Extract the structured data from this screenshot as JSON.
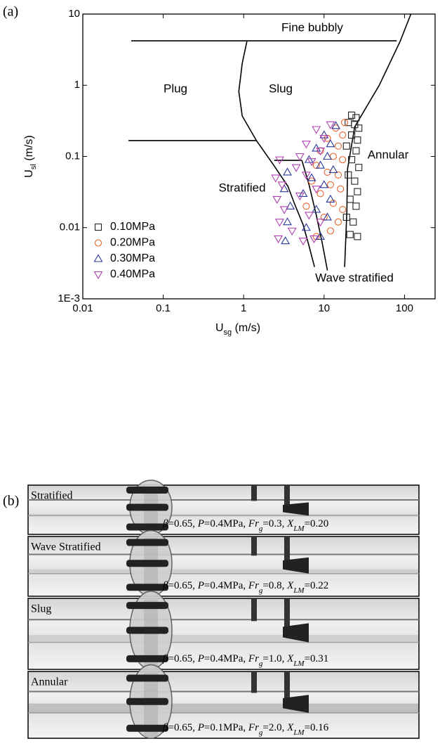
{
  "panel_labels": [
    "(a)",
    "(b)"
  ],
  "chart_data": {
    "type": "scatter",
    "x_label": [
      "U",
      "sg",
      " (m/s)"
    ],
    "y_label": [
      "U",
      "sl",
      " (m/s)"
    ],
    "log_x": true,
    "log_y": true,
    "xlim": [
      0.01,
      240
    ],
    "ylim": [
      0.001,
      10
    ],
    "xticks": [
      0.01,
      0.1,
      1,
      10,
      100
    ],
    "yticks": [
      {
        "value": 0.001,
        "label": "1E-3"
      },
      0.01,
      0.1,
      1,
      10
    ],
    "legend": "lower left",
    "annotations": [
      "Fine bubbly",
      "Plug",
      "Slug",
      "Annular",
      "Stratified",
      "Wave stratified"
    ],
    "boundaries": [
      {
        "x": [
          0.04,
          80
        ],
        "y": [
          4.2,
          4.2
        ]
      },
      {
        "x": [
          1.1,
          0.96,
          0.87,
          0.96,
          1.44,
          2.37,
          3.55,
          4.3,
          5.5,
          6.5,
          7.6
        ],
        "y": [
          4.2,
          2.04,
          0.82,
          0.37,
          0.167,
          0.075,
          0.038,
          0.0215,
          0.0109,
          0.0055,
          0.0028
        ]
      },
      {
        "x": [
          0.037,
          1.44
        ],
        "y": [
          0.167,
          0.167
        ]
      },
      {
        "x": [
          2.4,
          5.3
        ],
        "y": [
          0.088,
          0.088
        ]
      },
      {
        "x": [
          120,
          88.7,
          48.5,
          24,
          19.6,
          19.2,
          18
        ],
        "y": [
          10,
          4.2,
          1.0,
          0.26,
          0.067,
          0.017,
          0.0028
        ]
      },
      {
        "x": [
          5.3,
          6.5,
          8,
          9.5,
          11
        ],
        "y": [
          0.088,
          0.04,
          0.015,
          0.006,
          0.0025
        ]
      }
    ],
    "series": [
      {
        "name": "0.10MPa",
        "marker": "square",
        "color": "#222222",
        "x": [
          22,
          25,
          20,
          24,
          27,
          22,
          26,
          19,
          25,
          22,
          27,
          20,
          24,
          26,
          21,
          25,
          19,
          23,
          21,
          26
        ],
        "values": [
          0.38,
          0.35,
          0.3,
          0.28,
          0.25,
          0.2,
          0.17,
          0.14,
          0.12,
          0.09,
          0.07,
          0.055,
          0.045,
          0.032,
          0.025,
          0.02,
          0.014,
          0.012,
          0.008,
          0.0075
        ]
      },
      {
        "name": "0.20MPa",
        "marker": "circle",
        "color": "#e8632a",
        "x": [
          18,
          14,
          17,
          11,
          15,
          9,
          13,
          17,
          8,
          11,
          15,
          7,
          12,
          16,
          9,
          13,
          6,
          17,
          10,
          15,
          8,
          12
        ],
        "values": [
          0.3,
          0.25,
          0.2,
          0.18,
          0.14,
          0.12,
          0.1,
          0.09,
          0.075,
          0.06,
          0.055,
          0.045,
          0.04,
          0.035,
          0.03,
          0.022,
          0.02,
          0.018,
          0.014,
          0.012,
          0.0075,
          0.009
        ]
      },
      {
        "name": "0.30MPa",
        "marker": "triangle-up",
        "color": "#2a3a9a",
        "x": [
          14,
          10,
          12,
          8,
          11,
          6.5,
          9,
          13,
          3.5,
          7,
          10,
          3.2,
          5.5,
          12,
          3.8,
          8,
          3.5,
          11,
          6,
          3.3,
          9
        ],
        "values": [
          0.27,
          0.2,
          0.15,
          0.13,
          0.1,
          0.09,
          0.075,
          0.065,
          0.06,
          0.05,
          0.04,
          0.035,
          0.03,
          0.025,
          0.02,
          0.018,
          0.012,
          0.014,
          0.01,
          0.0065,
          0.0075
        ]
      },
      {
        "name": "0.40MPa",
        "marker": "triangle-down",
        "color": "#b040b0",
        "x": [
          12,
          8,
          10,
          6,
          9,
          5,
          7,
          2.8,
          4.5,
          2.5,
          6,
          3,
          8,
          2.6,
          5,
          3.2,
          6.5,
          2.8,
          9,
          4,
          2.7,
          5.5,
          7.5
        ],
        "values": [
          0.28,
          0.24,
          0.18,
          0.15,
          0.12,
          0.1,
          0.085,
          0.09,
          0.07,
          0.05,
          0.055,
          0.04,
          0.035,
          0.025,
          0.028,
          0.018,
          0.015,
          0.012,
          0.012,
          0.009,
          0.007,
          0.0065,
          0.007
        ]
      }
    ]
  },
  "photos": [
    {
      "label": "Stratified",
      "caption": [
        {
          "t": "β",
          "s": "italic"
        },
        {
          "t": "=0.65, ",
          "s": "plain"
        },
        {
          "t": "P",
          "s": "italic"
        },
        {
          "t": "=0.4MPa, ",
          "s": "plain"
        },
        {
          "t": "Fr",
          "s": "italic"
        },
        {
          "t": "g",
          "s": "italic-sub"
        },
        {
          "t": "=0.3, ",
          "s": "plain"
        },
        {
          "t": "X",
          "s": "italic"
        },
        {
          "t": "LM",
          "s": "italic-sub"
        },
        {
          "t": "=0.20",
          "s": "plain"
        }
      ]
    },
    {
      "label": "Wave Stratified",
      "caption": [
        {
          "t": "β",
          "s": "italic"
        },
        {
          "t": "=0.65, ",
          "s": "plain"
        },
        {
          "t": "P",
          "s": "italic"
        },
        {
          "t": "=0.4MPa, ",
          "s": "plain"
        },
        {
          "t": "Fr",
          "s": "italic"
        },
        {
          "t": "g",
          "s": "italic-sub"
        },
        {
          "t": "=0.8, ",
          "s": "plain"
        },
        {
          "t": "X",
          "s": "italic"
        },
        {
          "t": "LM",
          "s": "italic-sub"
        },
        {
          "t": "=0.22",
          "s": "plain"
        }
      ]
    },
    {
      "label": "Slug",
      "caption": [
        {
          "t": "β",
          "s": "italic"
        },
        {
          "t": "=0.65, ",
          "s": "plain"
        },
        {
          "t": "P",
          "s": "italic"
        },
        {
          "t": "=0.4MPa, ",
          "s": "plain"
        },
        {
          "t": "Fr",
          "s": "italic"
        },
        {
          "t": "g",
          "s": "italic-sub"
        },
        {
          "t": "=1.0, ",
          "s": "plain"
        },
        {
          "t": "X",
          "s": "italic"
        },
        {
          "t": "LM",
          "s": "italic-sub"
        },
        {
          "t": "=0.31",
          "s": "plain"
        }
      ]
    },
    {
      "label": "Annular",
      "caption": [
        {
          "t": "β",
          "s": "italic"
        },
        {
          "t": "=0.65, ",
          "s": "plain"
        },
        {
          "t": "P",
          "s": "italic"
        },
        {
          "t": "=0.1MPa, ",
          "s": "plain"
        },
        {
          "t": "Fr",
          "s": "italic"
        },
        {
          "t": "g",
          "s": "italic-sub"
        },
        {
          "t": "=2.0, ",
          "s": "plain"
        },
        {
          "t": "X",
          "s": "italic"
        },
        {
          "t": "LM",
          "s": "italic-sub"
        },
        {
          "t": "=0.16",
          "s": "plain"
        }
      ]
    }
  ]
}
